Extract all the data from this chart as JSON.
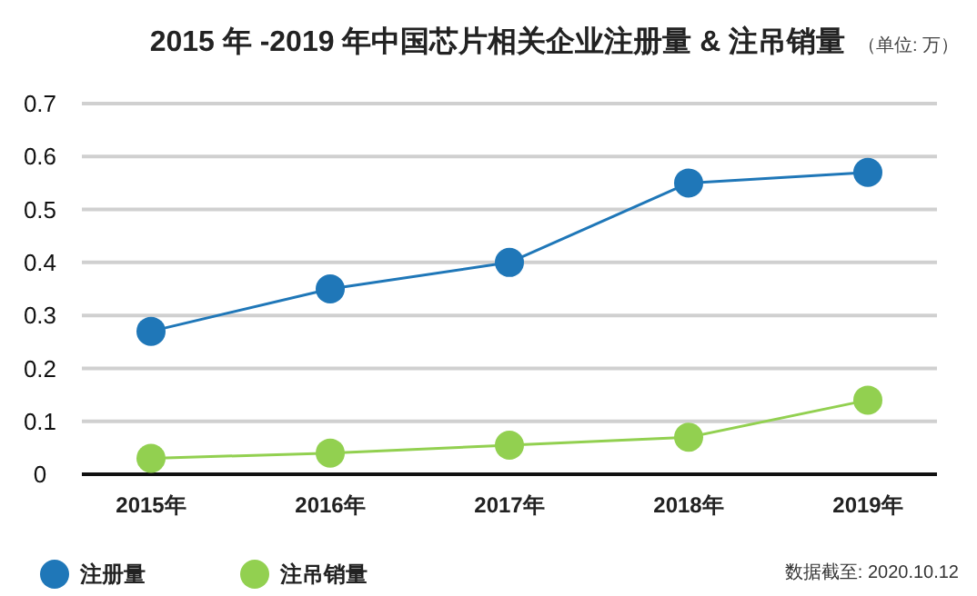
{
  "chart_data": {
    "type": "line",
    "title": "2015 年 -2019 年中国芯片相关企业注册量 & 注吊销量",
    "subtitle": "（单位: 万）",
    "annotations": [
      "数据截至: 2020.10.12"
    ],
    "categories": [
      "2015年",
      "2016年",
      "2017年",
      "2018年",
      "2019年"
    ],
    "series": [
      {
        "name": "注册量",
        "color": "#1f77b8",
        "values": [
          0.27,
          0.35,
          0.4,
          0.55,
          0.57
        ]
      },
      {
        "name": "注吊销量",
        "color": "#92d050",
        "values": [
          0.03,
          0.04,
          0.055,
          0.07,
          0.14
        ]
      }
    ],
    "ylim": [
      0,
      0.7
    ],
    "yticks": [
      0,
      0.1,
      0.2,
      0.3,
      0.4,
      0.5,
      0.6,
      0.7
    ],
    "grid": "y",
    "legend": "bottom left",
    "marker": "circle",
    "line_style": "solid"
  }
}
